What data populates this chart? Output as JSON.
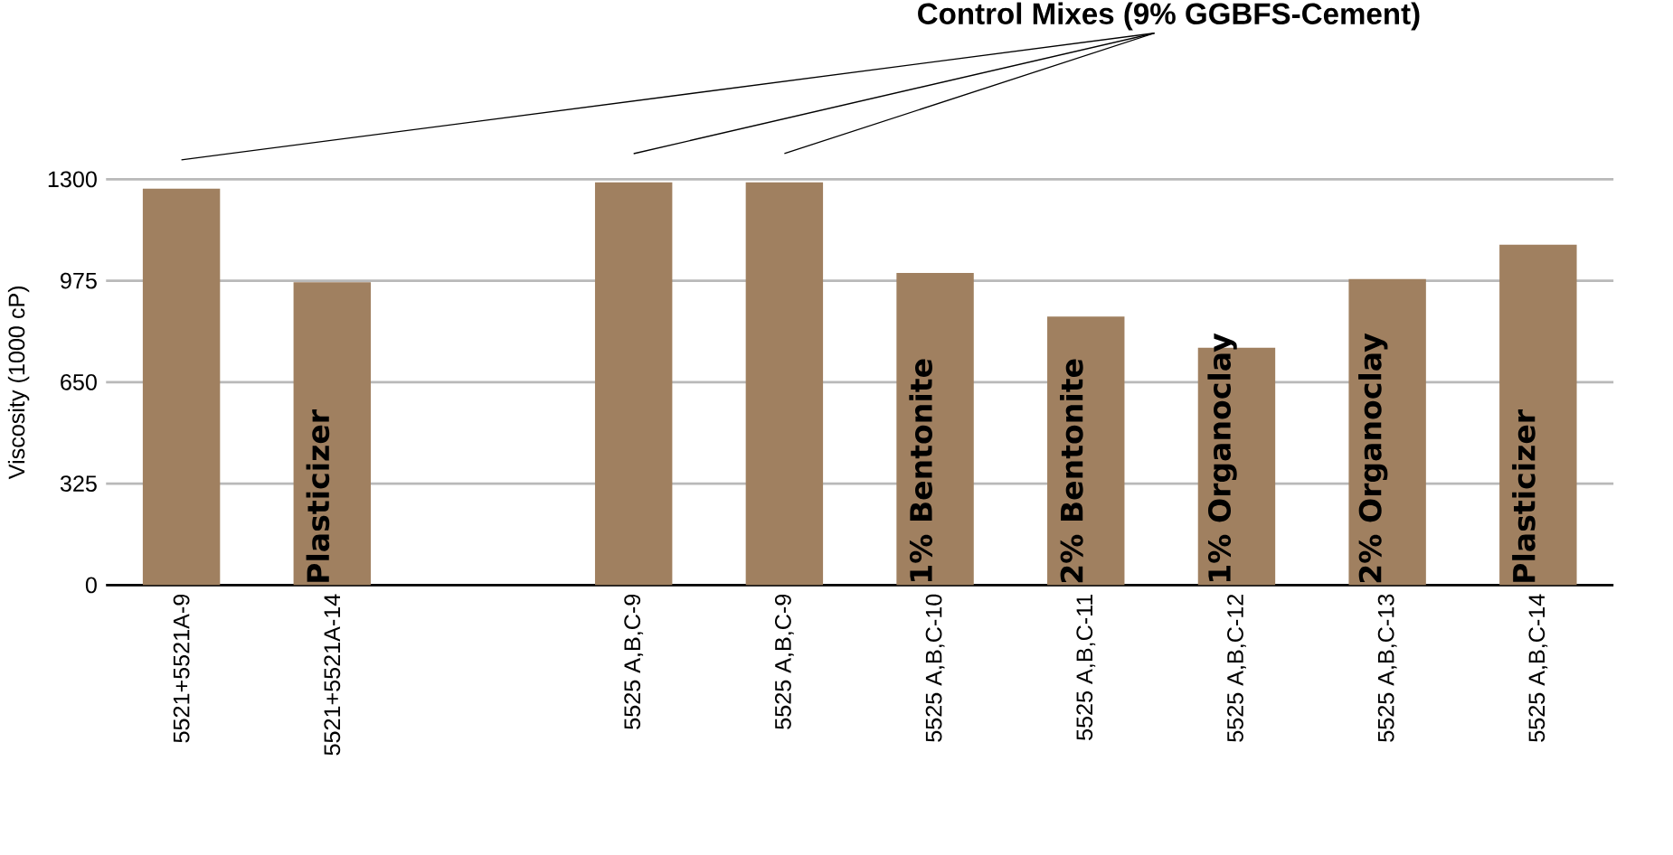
{
  "chart_data": {
    "type": "bar",
    "ylabel": "Viscosity (1000 cP)",
    "categories": [
      "5521+5521A-9",
      "5521+5521A-14",
      null,
      "5525 A,B,C-9",
      "5525 A,B,C-9",
      "5525 A,B,C-10",
      "5525 A,B,C-11",
      "5525 A,B,C-12",
      "5525 A,B,C-13",
      "5525 A,B,C-14"
    ],
    "series": [
      {
        "color": "#a08060",
        "values": [
          1270,
          null,
          null,
          1290,
          1290,
          null,
          null,
          null,
          null,
          null
        ]
      },
      {
        "name": "Plasticizer",
        "color": "#a08060",
        "values": [
          null,
          970,
          null,
          null,
          null,
          null,
          null,
          null,
          null,
          null
        ]
      },
      {
        "name": "1% Bentonite",
        "color": "#a08060",
        "values": [
          null,
          null,
          null,
          null,
          null,
          1000,
          null,
          null,
          null,
          null
        ]
      },
      {
        "name": "2% Bentonite",
        "color": "#a08060",
        "values": [
          null,
          null,
          null,
          null,
          null,
          null,
          860,
          null,
          null,
          null
        ]
      },
      {
        "name": "1% Organoclay",
        "color": "#a08060",
        "values": [
          null,
          null,
          null,
          null,
          null,
          null,
          null,
          760,
          null,
          null
        ]
      },
      {
        "name": "2% Organoclay",
        "color": "#a08060",
        "values": [
          null,
          null,
          null,
          null,
          null,
          null,
          null,
          null,
          980,
          null
        ]
      },
      {
        "name": "Plasticizer",
        "color": "#a08060",
        "values": [
          null,
          null,
          null,
          null,
          null,
          null,
          null,
          null,
          null,
          1090
        ]
      }
    ],
    "ylim": [
      0,
      1300
    ],
    "yticks": [
      0,
      325,
      650,
      975,
      1300
    ],
    "grid": "y",
    "annotations": [
      "Control Mixes (9% GGBFS-Cement)"
    ]
  }
}
